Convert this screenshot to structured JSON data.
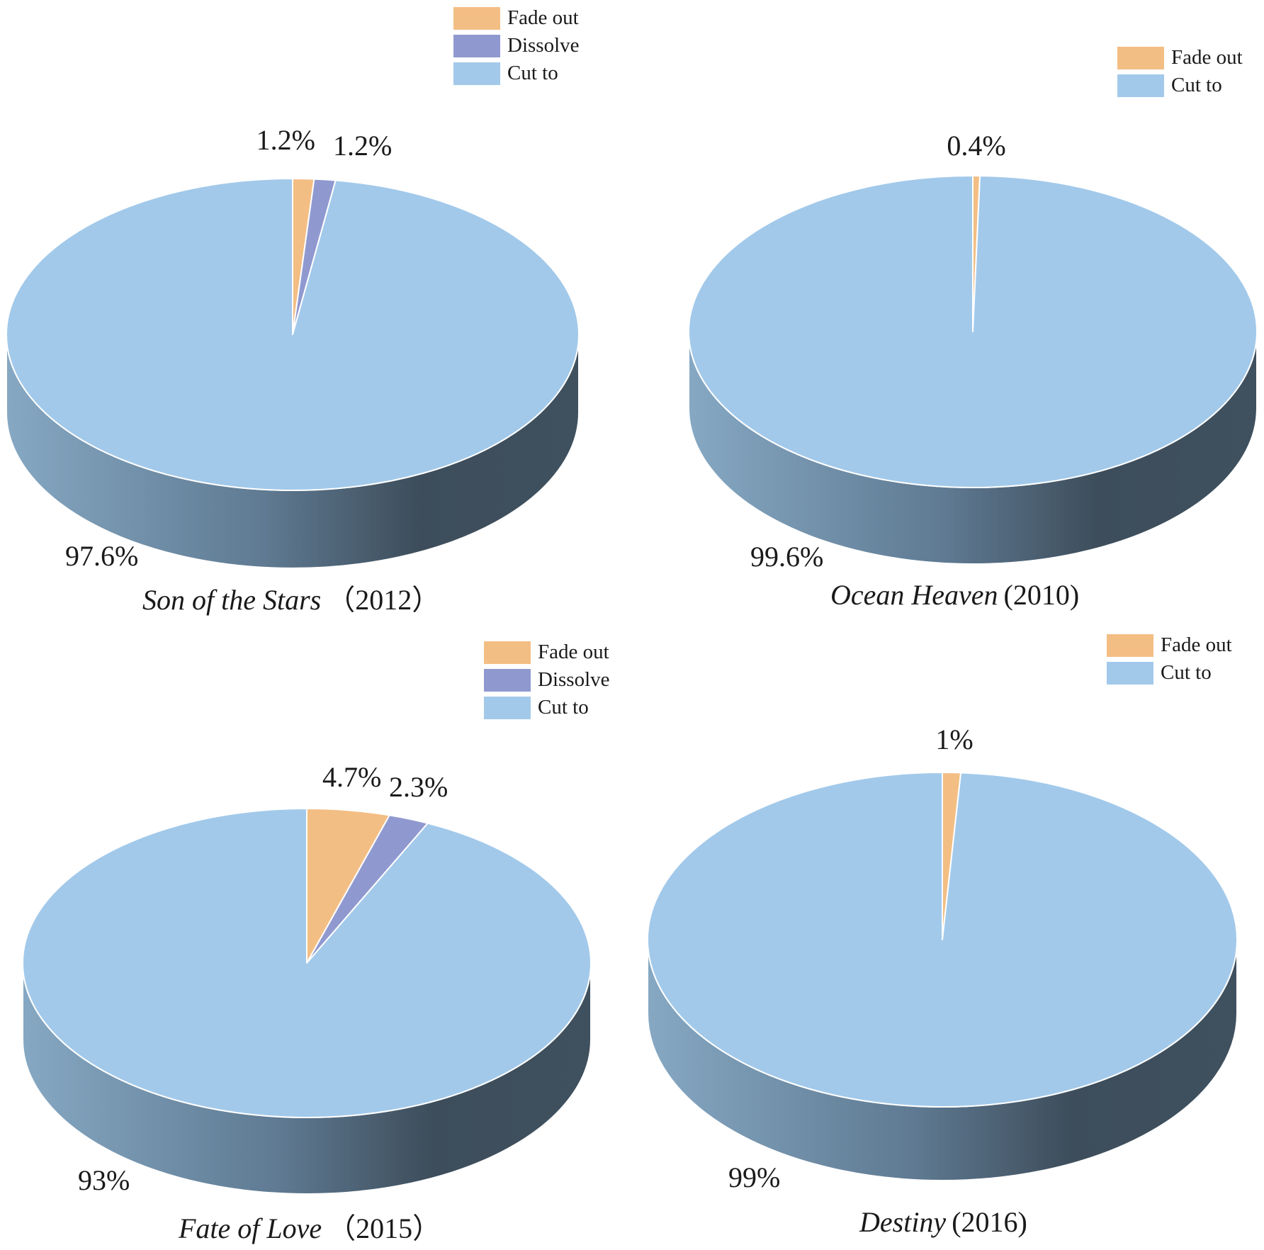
{
  "colors": {
    "fade_out": "#f3be84",
    "dissolve": "#9099cf",
    "cut_to": "#a2c9ea",
    "side_light": "#86a8c3",
    "side_dark": "#3d4d5b"
  },
  "chart_data": [
    {
      "type": "pie",
      "title": "Son of the Stars",
      "year": "（2012）",
      "legend": {
        "position": "top",
        "entries": [
          "Fade out",
          "Dissolve",
          "Cut to"
        ]
      },
      "slices": [
        {
          "name": "Fade out",
          "value": 1.2,
          "label": "1.2%"
        },
        {
          "name": "Dissolve",
          "value": 1.2,
          "label": "1.2%"
        },
        {
          "name": "Cut to",
          "value": 97.6,
          "label": "97.6%"
        }
      ]
    },
    {
      "type": "pie",
      "title": "Ocean Heaven",
      "year": "(2010)",
      "legend": {
        "position": "top-right",
        "entries": [
          "Fade out",
          "Cut to"
        ]
      },
      "slices": [
        {
          "name": "Fade out",
          "value": 0.4,
          "label": "0.4%"
        },
        {
          "name": "Cut to",
          "value": 99.6,
          "label": "99.6%"
        }
      ]
    },
    {
      "type": "pie",
      "title": "Fate of Love",
      "year": "（2015）",
      "legend": {
        "position": "top-right",
        "entries": [
          "Fade out",
          "Dissolve",
          "Cut to"
        ]
      },
      "slices": [
        {
          "name": "Fade out",
          "value": 4.7,
          "label": "4.7%"
        },
        {
          "name": "Dissolve",
          "value": 2.3,
          "label": "2.3%"
        },
        {
          "name": "Cut to",
          "value": 93,
          "label": "93%"
        }
      ]
    },
    {
      "type": "pie",
      "title": "Destiny",
      "year": "(2016)",
      "legend": {
        "position": "top-right",
        "entries": [
          "Fade out",
          "Cut to"
        ]
      },
      "slices": [
        {
          "name": "Fade out",
          "value": 1,
          "label": "1%"
        },
        {
          "name": "Cut to",
          "value": 99,
          "label": "99%"
        }
      ]
    }
  ]
}
